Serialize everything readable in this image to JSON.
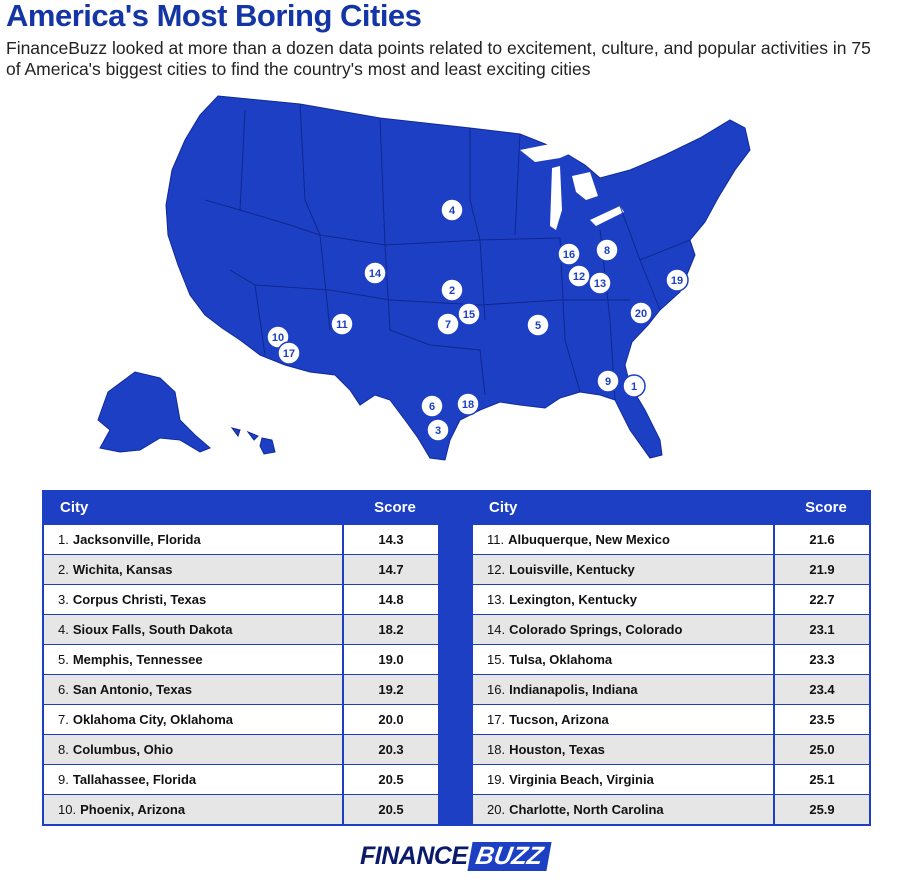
{
  "header": {
    "title": "America's Most Boring Cities",
    "subtitle": "FinanceBuzz looked at more than a dozen data points related to excitement, culture, and popular activities in 75 of America's biggest cities to find the country's most and least exciting cities"
  },
  "map": {
    "fill_color": "#1d3fc4",
    "marker_labels": [
      "1",
      "2",
      "3",
      "4",
      "5",
      "6",
      "7",
      "8",
      "9",
      "10",
      "11",
      "12",
      "13",
      "14",
      "15",
      "16",
      "17",
      "18",
      "19",
      "20"
    ]
  },
  "table": {
    "headers": {
      "city": "City",
      "score": "Score"
    },
    "left": [
      {
        "rank": "1.",
        "city": "Jacksonville, Florida",
        "score": "14.3"
      },
      {
        "rank": "2.",
        "city": "Wichita, Kansas",
        "score": "14.7"
      },
      {
        "rank": "3.",
        "city": "Corpus Christi, Texas",
        "score": "14.8"
      },
      {
        "rank": "4.",
        "city": "Sioux Falls, South Dakota",
        "score": "18.2"
      },
      {
        "rank": "5.",
        "city": "Memphis, Tennessee",
        "score": "19.0"
      },
      {
        "rank": "6.",
        "city": "San Antonio, Texas",
        "score": "19.2"
      },
      {
        "rank": "7.",
        "city": "Oklahoma City, Oklahoma",
        "score": "20.0"
      },
      {
        "rank": "8.",
        "city": "Columbus, Ohio",
        "score": "20.3"
      },
      {
        "rank": "9.",
        "city": "Tallahassee, Florida",
        "score": "20.5"
      },
      {
        "rank": "10.",
        "city": "Phoenix, Arizona",
        "score": "20.5"
      }
    ],
    "right": [
      {
        "rank": "11.",
        "city": "Albuquerque, New Mexico",
        "score": "21.6"
      },
      {
        "rank": "12.",
        "city": "Louisville, Kentucky",
        "score": "21.9"
      },
      {
        "rank": "13.",
        "city": "Lexington, Kentucky",
        "score": "22.7"
      },
      {
        "rank": "14.",
        "city": "Colorado Springs, Colorado",
        "score": "23.1"
      },
      {
        "rank": "15.",
        "city": "Tulsa, Oklahoma",
        "score": "23.3"
      },
      {
        "rank": "16.",
        "city": "Indianapolis, Indiana",
        "score": "23.4"
      },
      {
        "rank": "17.",
        "city": "Tucson, Arizona",
        "score": "23.5"
      },
      {
        "rank": "18.",
        "city": "Houston, Texas",
        "score": "25.0"
      },
      {
        "rank": "19.",
        "city": "Virginia Beach, Virginia",
        "score": "25.1"
      },
      {
        "rank": "20.",
        "city": "Charlotte, North Carolina",
        "score": "25.9"
      }
    ]
  },
  "logo": {
    "part1": "FINANCE",
    "part2": "BUZZ"
  }
}
